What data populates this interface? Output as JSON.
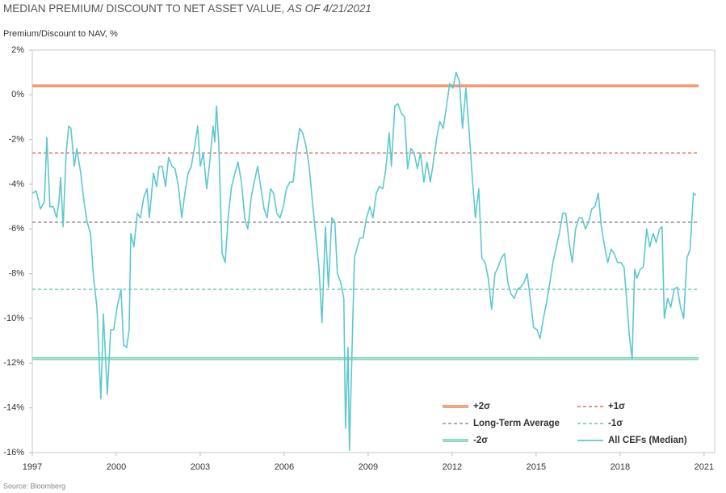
{
  "chart_data": {
    "type": "line",
    "title": "MEDIAN PREMIUM/ DISCOUNT TO NET ASSET VALUE,",
    "title_date": "AS OF 4/21/2021",
    "y_label": "Premium/Discount to NAV, %",
    "source": "Source: Bloomberg",
    "xlim": [
      1997,
      2021.38
    ],
    "xticks": [
      1997,
      2000,
      2003,
      2006,
      2009,
      2012,
      2015,
      2018,
      2021
    ],
    "ylim": [
      -16,
      2
    ],
    "yticks": [
      {
        "value": 2,
        "label": "2%"
      },
      {
        "value": 0,
        "label": "0%"
      },
      {
        "value": -2,
        "label": "-2%"
      },
      {
        "value": -4,
        "label": "-4%"
      },
      {
        "value": -6,
        "label": "-6%"
      },
      {
        "value": -8,
        "label": "-8%"
      },
      {
        "value": -10,
        "label": "-10%"
      },
      {
        "value": -12,
        "label": "-12%"
      },
      {
        "value": -14,
        "label": "-14%"
      },
      {
        "value": -16,
        "label": "-16%"
      }
    ],
    "reference_lines": [
      {
        "name": "+2σ",
        "value": 0.4,
        "color": "#f07e52",
        "style": "double"
      },
      {
        "name": "+1σ",
        "value": -2.6,
        "color": "#e2553a",
        "style": "dashed"
      },
      {
        "name": "Long-Term Average",
        "value": -5.7,
        "color": "#7a7a7a",
        "style": "dashed"
      },
      {
        "name": "-1σ",
        "value": -8.7,
        "color": "#4fbfae",
        "style": "dashed"
      },
      {
        "name": "-2σ",
        "value": -11.8,
        "color": "#6fcfb0",
        "style": "double"
      }
    ],
    "series": [
      {
        "name": "All CEFs (Median)",
        "color": "#5ec8cc",
        "x": [
          1997.0,
          1997.14,
          1997.29,
          1997.43,
          1997.52,
          1997.63,
          1997.75,
          1997.87,
          1997.95,
          1998.01,
          1998.1,
          1998.21,
          1998.3,
          1998.38,
          1998.5,
          1998.59,
          1998.73,
          1998.85,
          1998.96,
          1999.08,
          1999.19,
          1999.31,
          1999.45,
          1999.54,
          1999.68,
          1999.8,
          1999.91,
          2000.03,
          2000.17,
          2000.26,
          2000.37,
          2000.46,
          2000.52,
          2000.63,
          2000.75,
          2000.86,
          2000.98,
          2001.1,
          2001.18,
          2001.33,
          2001.44,
          2001.53,
          2001.64,
          2001.76,
          2001.87,
          2001.99,
          2002.1,
          2002.22,
          2002.34,
          2002.45,
          2002.57,
          2002.68,
          2002.8,
          2002.91,
          2003.0,
          2003.11,
          2003.23,
          2003.34,
          2003.46,
          2003.52,
          2003.58,
          2003.66,
          2003.78,
          2003.89,
          2004.01,
          2004.12,
          2004.24,
          2004.35,
          2004.47,
          2004.59,
          2004.7,
          2004.82,
          2004.93,
          2005.05,
          2005.16,
          2005.28,
          2005.39,
          2005.51,
          2005.62,
          2005.74,
          2005.85,
          2005.97,
          2006.08,
          2006.2,
          2006.32,
          2006.43,
          2006.55,
          2006.66,
          2006.78,
          2006.89,
          2007.01,
          2007.12,
          2007.24,
          2007.35,
          2007.47,
          2007.58,
          2007.7,
          2007.81,
          2007.9,
          2008.02,
          2008.13,
          2008.19,
          2008.28,
          2008.33,
          2008.42,
          2008.51,
          2008.59,
          2008.71,
          2008.82,
          2008.94,
          2009.06,
          2009.17,
          2009.29,
          2009.4,
          2009.52,
          2009.63,
          2009.75,
          2009.83,
          2009.95,
          2010.06,
          2010.18,
          2010.3,
          2010.41,
          2010.53,
          2010.64,
          2010.76,
          2010.87,
          2010.99,
          2011.1,
          2011.22,
          2011.33,
          2011.45,
          2011.56,
          2011.68,
          2011.8,
          2011.91,
          2012.03,
          2012.14,
          2012.26,
          2012.37,
          2012.49,
          2012.6,
          2012.72,
          2012.83,
          2012.95,
          2013.06,
          2013.18,
          2013.29,
          2013.41,
          2013.53,
          2013.64,
          2013.76,
          2013.87,
          2013.99,
          2014.1,
          2014.22,
          2014.33,
          2014.45,
          2014.56,
          2014.68,
          2014.79,
          2014.91,
          2015.03,
          2015.14,
          2015.26,
          2015.37,
          2015.49,
          2015.6,
          2015.72,
          2015.83,
          2015.95,
          2016.06,
          2016.18,
          2016.29,
          2016.41,
          2016.53,
          2016.64,
          2016.76,
          2016.87,
          2016.99,
          2017.1,
          2017.22,
          2017.33,
          2017.45,
          2017.56,
          2017.68,
          2017.79,
          2017.91,
          2018.03,
          2018.14,
          2018.23,
          2018.34,
          2018.43,
          2018.52,
          2018.6,
          2018.72,
          2018.83,
          2018.95,
          2019.06,
          2019.18,
          2019.29,
          2019.41,
          2019.5,
          2019.58,
          2019.7,
          2019.81,
          2019.93,
          2020.04,
          2020.16,
          2020.27,
          2020.39,
          2020.5,
          2020.62,
          2020.71
        ],
        "values": [
          -4.4,
          -4.3,
          -5.1,
          -4.8,
          -1.9,
          -5.0,
          -5.0,
          -5.5,
          -4.8,
          -3.7,
          -5.9,
          -2.6,
          -1.4,
          -1.5,
          -3.2,
          -2.4,
          -3.5,
          -4.8,
          -5.7,
          -6.2,
          -8.2,
          -9.5,
          -13.6,
          -9.8,
          -13.4,
          -10.5,
          -10.5,
          -9.5,
          -8.7,
          -11.2,
          -11.3,
          -10.5,
          -6.2,
          -6.8,
          -5.3,
          -5.5,
          -4.6,
          -4.2,
          -5.5,
          -3.5,
          -4.1,
          -3.2,
          -3.2,
          -4.1,
          -2.8,
          -3.2,
          -3.3,
          -4.1,
          -5.5,
          -4.4,
          -3.5,
          -3.2,
          -2.3,
          -1.4,
          -3.2,
          -2.6,
          -4.2,
          -3.0,
          -1.4,
          -2.1,
          -0.5,
          -2.1,
          -7.1,
          -7.5,
          -5.3,
          -4.1,
          -3.5,
          -3.0,
          -3.9,
          -5.5,
          -6.0,
          -4.6,
          -3.9,
          -3.2,
          -4.1,
          -5.1,
          -5.5,
          -4.2,
          -4.4,
          -5.3,
          -5.5,
          -5.0,
          -4.2,
          -3.9,
          -3.9,
          -2.6,
          -1.5,
          -1.7,
          -2.3,
          -3.2,
          -4.8,
          -6.2,
          -7.7,
          -10.2,
          -5.9,
          -8.6,
          -5.5,
          -5.7,
          -8.0,
          -8.4,
          -9.1,
          -14.9,
          -11.3,
          -15.9,
          -11.6,
          -7.3,
          -6.9,
          -6.4,
          -6.4,
          -5.5,
          -5.0,
          -5.5,
          -4.4,
          -4.1,
          -4.2,
          -3.3,
          -1.7,
          -3.2,
          -0.5,
          -0.4,
          -0.8,
          -1.0,
          -3.3,
          -2.4,
          -2.6,
          -3.3,
          -2.6,
          -3.9,
          -3.0,
          -3.9,
          -3.0,
          -1.9,
          -1.2,
          -1.5,
          -0.5,
          0.5,
          0.3,
          1.0,
          0.6,
          -1.5,
          0.3,
          -1.5,
          -3.7,
          -5.5,
          -4.2,
          -7.3,
          -7.5,
          -8.2,
          -9.6,
          -8.0,
          -7.7,
          -7.3,
          -7.1,
          -8.4,
          -8.9,
          -9.1,
          -8.7,
          -8.6,
          -8.4,
          -8.0,
          -9.1,
          -10.4,
          -10.5,
          -10.9,
          -10.0,
          -9.3,
          -8.4,
          -7.5,
          -6.8,
          -6.2,
          -5.3,
          -5.3,
          -6.6,
          -7.5,
          -6.0,
          -5.5,
          -5.5,
          -6.0,
          -5.7,
          -5.1,
          -5.0,
          -4.4,
          -5.9,
          -6.8,
          -7.5,
          -6.9,
          -7.1,
          -7.5,
          -7.5,
          -7.7,
          -9.1,
          -10.9,
          -11.8,
          -7.8,
          -8.2,
          -7.8,
          -7.7,
          -6.0,
          -6.8,
          -6.2,
          -6.6,
          -6.0,
          -5.9,
          -10.0,
          -9.1,
          -9.5,
          -8.7,
          -8.6,
          -9.5,
          -10.0,
          -7.3,
          -6.9,
          -4.4,
          -4.5
        ]
      }
    ]
  }
}
